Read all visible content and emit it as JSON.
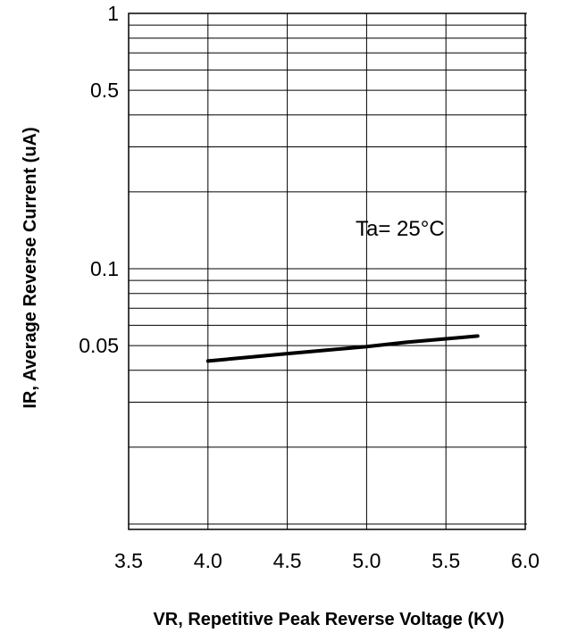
{
  "chart_data": {
    "type": "line",
    "title": "",
    "xlabel": "VR, Repetitive Peak Reverse Voltage (KV)",
    "ylabel": "IR, Average Reverse Current  (uA)",
    "x_scale": "linear",
    "y_scale": "log",
    "xlim": [
      3.5,
      6.0
    ],
    "ylim": [
      0.01,
      1
    ],
    "x_ticks": [
      3.5,
      4.0,
      4.5,
      5.0,
      5.5,
      6.0
    ],
    "x_tick_labels": [
      "3.5",
      "4.0",
      "4.5",
      "5.0",
      "5.5",
      "6.0"
    ],
    "y_tick_values": [
      1,
      0.5,
      0.1,
      0.05
    ],
    "y_tick_labels": [
      "1",
      "0.5",
      "0.1",
      "0.05"
    ],
    "grid": true,
    "annotation": "Ta= 25°C",
    "series": [
      {
        "x": [
          4.0,
          4.5,
          5.0,
          5.25,
          5.7
        ],
        "y": [
          0.0435,
          0.0465,
          0.0495,
          0.0515,
          0.0545
        ]
      }
    ]
  }
}
